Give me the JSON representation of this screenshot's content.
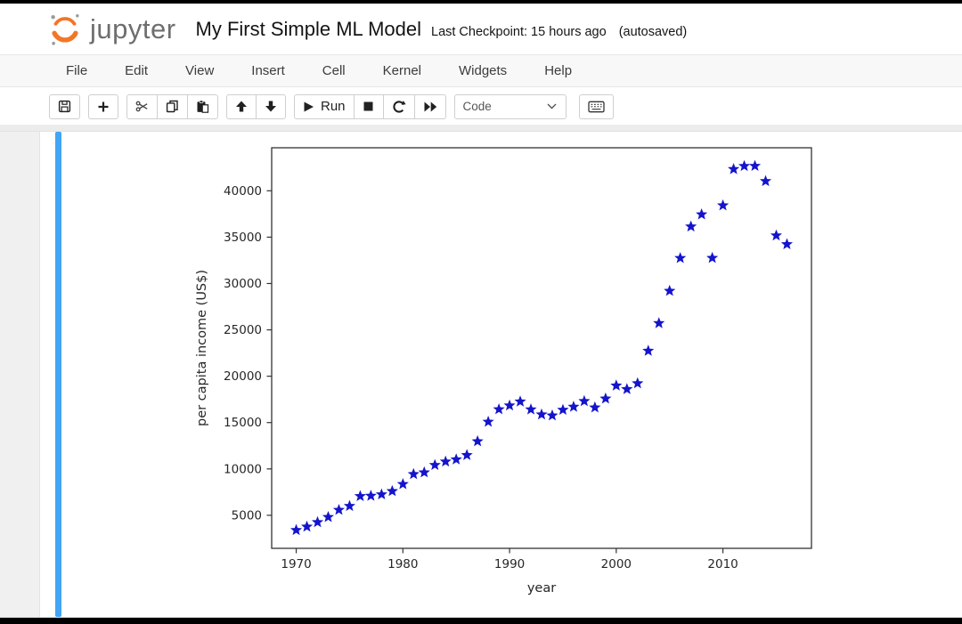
{
  "header": {
    "wordmark": "jupyter",
    "title": "My First Simple ML Model",
    "checkpoint": "Last Checkpoint: 15 hours ago",
    "autosaved": "(autosaved)"
  },
  "menu": {
    "items": [
      "File",
      "Edit",
      "View",
      "Insert",
      "Cell",
      "Kernel",
      "Widgets",
      "Help"
    ]
  },
  "toolbar": {
    "run_label": "Run",
    "cell_type_value": "Code",
    "icons": [
      "save-icon",
      "add-cell-icon",
      "cut-icon",
      "copy-icon",
      "paste-icon",
      "arrow-up-icon",
      "arrow-down-icon",
      "play-icon",
      "stop-icon",
      "restart-icon",
      "fast-forward-icon",
      "chevron-down-icon",
      "keyboard-icon"
    ]
  },
  "colors": {
    "selected_cell_bar": "#42A5F5",
    "jupyter_orange": "#F37626",
    "marker_blue": "#1414CC",
    "axis_text": "#262626"
  },
  "chart_data": {
    "type": "scatter",
    "title": "",
    "xlabel": "year",
    "ylabel": "per capita income (US$)",
    "marker": "star",
    "marker_color": "#1414CC",
    "grid": false,
    "legend": "none",
    "xlim": [
      1967.7,
      2018.3
    ],
    "ylim": [
      1435,
      44640
    ],
    "xticks": [
      1970,
      1980,
      1990,
      2000,
      2010
    ],
    "yticks": [
      5000,
      10000,
      15000,
      20000,
      25000,
      30000,
      35000,
      40000
    ],
    "x": [
      1970,
      1971,
      1972,
      1973,
      1974,
      1975,
      1976,
      1977,
      1978,
      1979,
      1980,
      1981,
      1982,
      1983,
      1984,
      1985,
      1986,
      1987,
      1988,
      1989,
      1990,
      1991,
      1992,
      1993,
      1994,
      1995,
      1996,
      1997,
      1998,
      1999,
      2000,
      2001,
      2002,
      2003,
      2004,
      2005,
      2006,
      2007,
      2008,
      2009,
      2010,
      2011,
      2012,
      2013,
      2014,
      2015,
      2016
    ],
    "y": [
      3399.3,
      3768.3,
      4251.2,
      4804.5,
      5576.5,
      5998.1,
      7062.1,
      7100.1,
      7248.0,
      7602.9,
      8356.0,
      9434.4,
      9619.4,
      10416.5,
      10790.3,
      11019.0,
      11482.9,
      12974.8,
      15080.3,
      16426.7,
      16838.7,
      17266.1,
      16412.1,
      15875.6,
      15755.8,
      16369.3,
      16699.8,
      17310.8,
      16622.7,
      17581.0,
      18987.4,
      18601.4,
      19232.2,
      22739.4,
      25719.1,
      29198.1,
      32738.3,
      36144.5,
      37446.5,
      32755.2,
      38420.5,
      42334.7,
      42665.3,
      42676.5,
      41039.9,
      35175.2,
      34229.2
    ]
  }
}
